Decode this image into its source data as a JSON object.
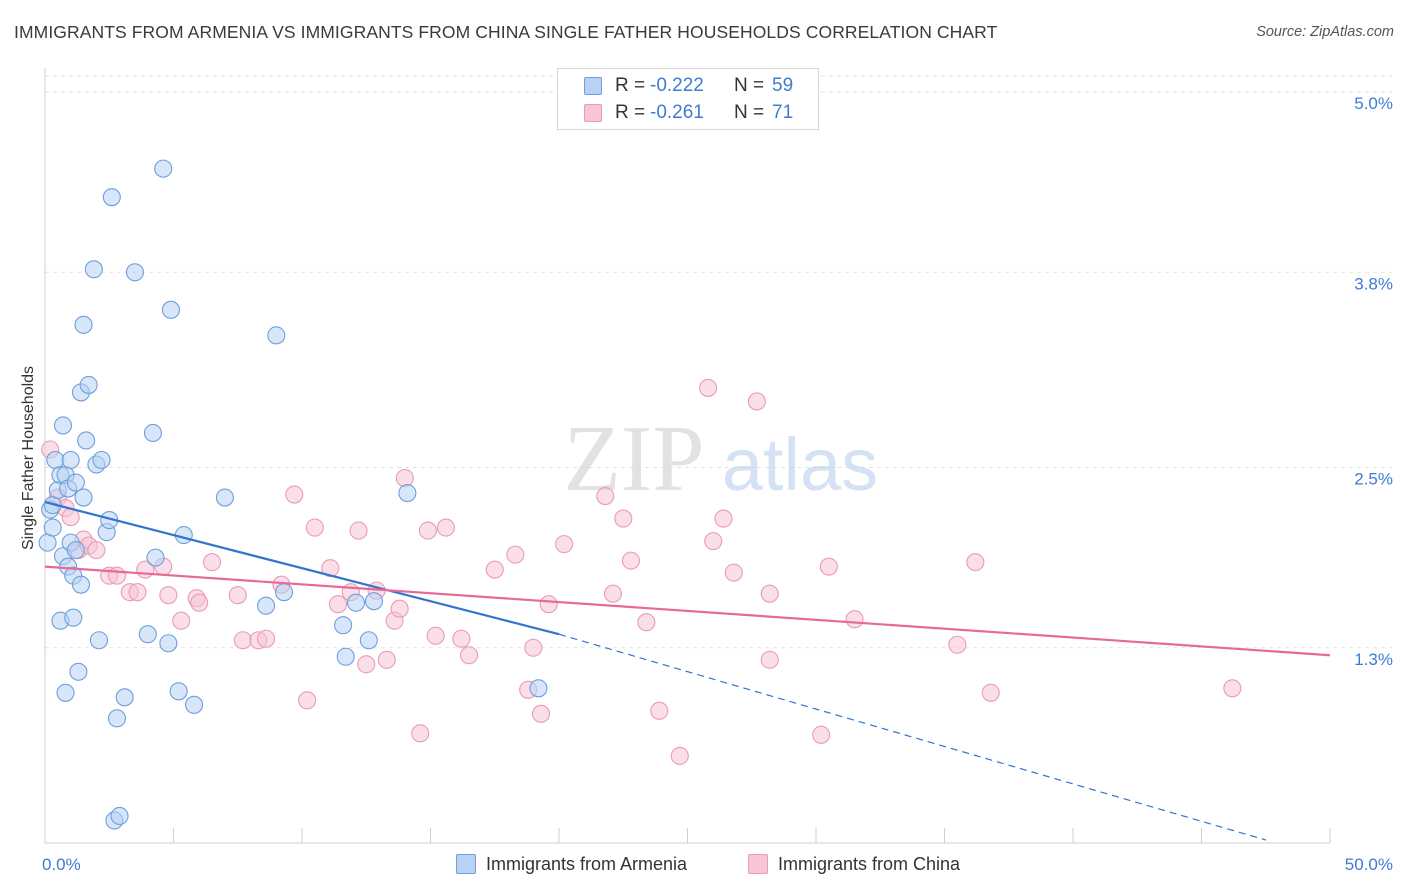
{
  "header": {
    "title": "IMMIGRANTS FROM ARMENIA VS IMMIGRANTS FROM CHINA SINGLE FATHER HOUSEHOLDS CORRELATION CHART",
    "source": "Source: ZipAtlas.com"
  },
  "watermark": {
    "zip": "ZIP",
    "atlas": "atlas"
  },
  "colors": {
    "armenia_fill": "#b8d2f4",
    "armenia_stroke": "#6e9fdc",
    "armenia_line": "#3374d1",
    "china_fill": "#f8c5d6",
    "china_stroke": "#eb9ab8",
    "china_line": "#e56b95",
    "axis_value": "#3f7bd4",
    "grid": "#e2e2e2"
  },
  "legend_top": {
    "rows": [
      {
        "r_label": "R =",
        "r_value": "-0.222",
        "n_label": "N =",
        "n_value": "59"
      },
      {
        "r_label": "R =",
        "r_value": "-0.261",
        "n_label": "N =",
        "n_value": "71"
      }
    ]
  },
  "chart_data": {
    "type": "scatter",
    "title": "IMMIGRANTS FROM ARMENIA VS IMMIGRANTS FROM CHINA SINGLE FATHER HOUSEHOLDS CORRELATION CHART",
    "xlabel": "",
    "ylabel": "Single Father Households",
    "xlim": [
      0,
      50
    ],
    "ylim": [
      0,
      5.2
    ],
    "x_tick_labels": [
      "0.0%",
      "50.0%"
    ],
    "y_ticks": [
      1.3,
      2.5,
      3.8,
      5.0
    ],
    "y_tick_labels": [
      "1.3%",
      "2.5%",
      "3.8%",
      "5.0%"
    ],
    "grid": true,
    "legend_position": "bottom",
    "series": [
      {
        "name": "Immigrants from Armenia",
        "stats": {
          "R": -0.222,
          "N": 59
        },
        "trend": {
          "x0": 0,
          "y0": 2.27,
          "x1": 20,
          "y1": 1.39,
          "dashed_to_x": 47.5,
          "dashed_to_y": 0.02
        },
        "points": [
          [
            0.1,
            2.0
          ],
          [
            0.2,
            2.22
          ],
          [
            0.3,
            2.25
          ],
          [
            0.4,
            2.55
          ],
          [
            0.5,
            2.35
          ],
          [
            0.6,
            2.45
          ],
          [
            0.6,
            1.48
          ],
          [
            0.7,
            2.78
          ],
          [
            0.7,
            1.91
          ],
          [
            0.8,
            1.0
          ],
          [
            0.8,
            2.45
          ],
          [
            0.9,
            2.36
          ],
          [
            0.9,
            1.84
          ],
          [
            1.0,
            2.0
          ],
          [
            1.0,
            2.55
          ],
          [
            1.1,
            1.5
          ],
          [
            1.1,
            1.78
          ],
          [
            1.2,
            1.95
          ],
          [
            1.2,
            2.4
          ],
          [
            1.3,
            1.14
          ],
          [
            1.4,
            1.72
          ],
          [
            1.4,
            3.0
          ],
          [
            1.5,
            3.45
          ],
          [
            1.6,
            2.68
          ],
          [
            1.7,
            3.05
          ],
          [
            1.9,
            3.82
          ],
          [
            2.0,
            2.52
          ],
          [
            2.1,
            1.35
          ],
          [
            2.2,
            2.55
          ],
          [
            2.4,
            2.07
          ],
          [
            2.5,
            2.15
          ],
          [
            2.6,
            4.3
          ],
          [
            2.7,
            0.15
          ],
          [
            2.8,
            0.83
          ],
          [
            2.9,
            0.18
          ],
          [
            3.1,
            0.97
          ],
          [
            3.5,
            3.8
          ],
          [
            4.0,
            1.39
          ],
          [
            4.2,
            2.73
          ],
          [
            4.3,
            1.9
          ],
          [
            4.6,
            4.49
          ],
          [
            4.8,
            1.33
          ],
          [
            4.9,
            3.55
          ],
          [
            5.2,
            1.01
          ],
          [
            5.4,
            2.05
          ],
          [
            5.8,
            0.92
          ],
          [
            7.0,
            2.3
          ],
          [
            8.6,
            1.58
          ],
          [
            9.0,
            3.38
          ],
          [
            9.3,
            1.67
          ],
          [
            11.6,
            1.45
          ],
          [
            11.7,
            1.24
          ],
          [
            12.1,
            1.6
          ],
          [
            12.6,
            1.35
          ],
          [
            12.8,
            1.61
          ],
          [
            14.1,
            2.33
          ],
          [
            19.2,
            1.03
          ],
          [
            0.3,
            2.1
          ],
          [
            1.5,
            2.3
          ]
        ]
      },
      {
        "name": "Immigrants from China",
        "stats": {
          "R": -0.261,
          "N": 71
        },
        "trend": {
          "x0": 0,
          "y0": 1.84,
          "x1": 50,
          "y1": 1.25
        },
        "points": [
          [
            0.2,
            2.62
          ],
          [
            0.5,
            2.3
          ],
          [
            0.8,
            2.23
          ],
          [
            1.0,
            2.17
          ],
          [
            1.3,
            1.95
          ],
          [
            1.5,
            2.02
          ],
          [
            1.7,
            1.98
          ],
          [
            2.0,
            1.95
          ],
          [
            2.5,
            1.78
          ],
          [
            2.8,
            1.78
          ],
          [
            3.3,
            1.67
          ],
          [
            3.6,
            1.67
          ],
          [
            3.9,
            1.82
          ],
          [
            4.6,
            1.84
          ],
          [
            4.8,
            1.65
          ],
          [
            5.3,
            1.48
          ],
          [
            5.9,
            1.63
          ],
          [
            6.0,
            1.6
          ],
          [
            6.5,
            1.87
          ],
          [
            7.5,
            1.65
          ],
          [
            7.7,
            1.35
          ],
          [
            8.3,
            1.35
          ],
          [
            8.6,
            1.36
          ],
          [
            9.2,
            1.72
          ],
          [
            9.7,
            2.32
          ],
          [
            10.5,
            2.1
          ],
          [
            10.2,
            0.95
          ],
          [
            11.1,
            1.83
          ],
          [
            11.4,
            1.59
          ],
          [
            11.9,
            1.67
          ],
          [
            12.2,
            2.08
          ],
          [
            12.5,
            1.19
          ],
          [
            12.9,
            1.68
          ],
          [
            13.3,
            1.22
          ],
          [
            13.6,
            1.48
          ],
          [
            13.8,
            1.56
          ],
          [
            14.0,
            2.43
          ],
          [
            14.6,
            0.73
          ],
          [
            14.9,
            2.08
          ],
          [
            15.2,
            1.38
          ],
          [
            15.6,
            2.1
          ],
          [
            16.2,
            1.36
          ],
          [
            16.5,
            1.25
          ],
          [
            17.5,
            1.82
          ],
          [
            18.3,
            1.92
          ],
          [
            18.8,
            1.02
          ],
          [
            19.3,
            0.86
          ],
          [
            19.0,
            1.3
          ],
          [
            19.6,
            1.59
          ],
          [
            20.2,
            1.99
          ],
          [
            21.8,
            2.31
          ],
          [
            22.1,
            1.66
          ],
          [
            22.5,
            2.16
          ],
          [
            22.8,
            1.88
          ],
          [
            23.4,
            1.47
          ],
          [
            23.9,
            0.88
          ],
          [
            24.7,
            0.58
          ],
          [
            25.8,
            3.03
          ],
          [
            26.0,
            2.01
          ],
          [
            26.4,
            2.16
          ],
          [
            26.8,
            1.8
          ],
          [
            27.7,
            2.94
          ],
          [
            28.2,
            1.66
          ],
          [
            28.2,
            1.22
          ],
          [
            30.2,
            0.72
          ],
          [
            30.5,
            1.84
          ],
          [
            31.5,
            1.49
          ],
          [
            35.5,
            1.32
          ],
          [
            36.2,
            1.87
          ],
          [
            36.8,
            1.0
          ],
          [
            46.2,
            1.03
          ]
        ]
      }
    ]
  },
  "legend_bottom": {
    "items": [
      "Immigrants from Armenia",
      "Immigrants from China"
    ]
  }
}
